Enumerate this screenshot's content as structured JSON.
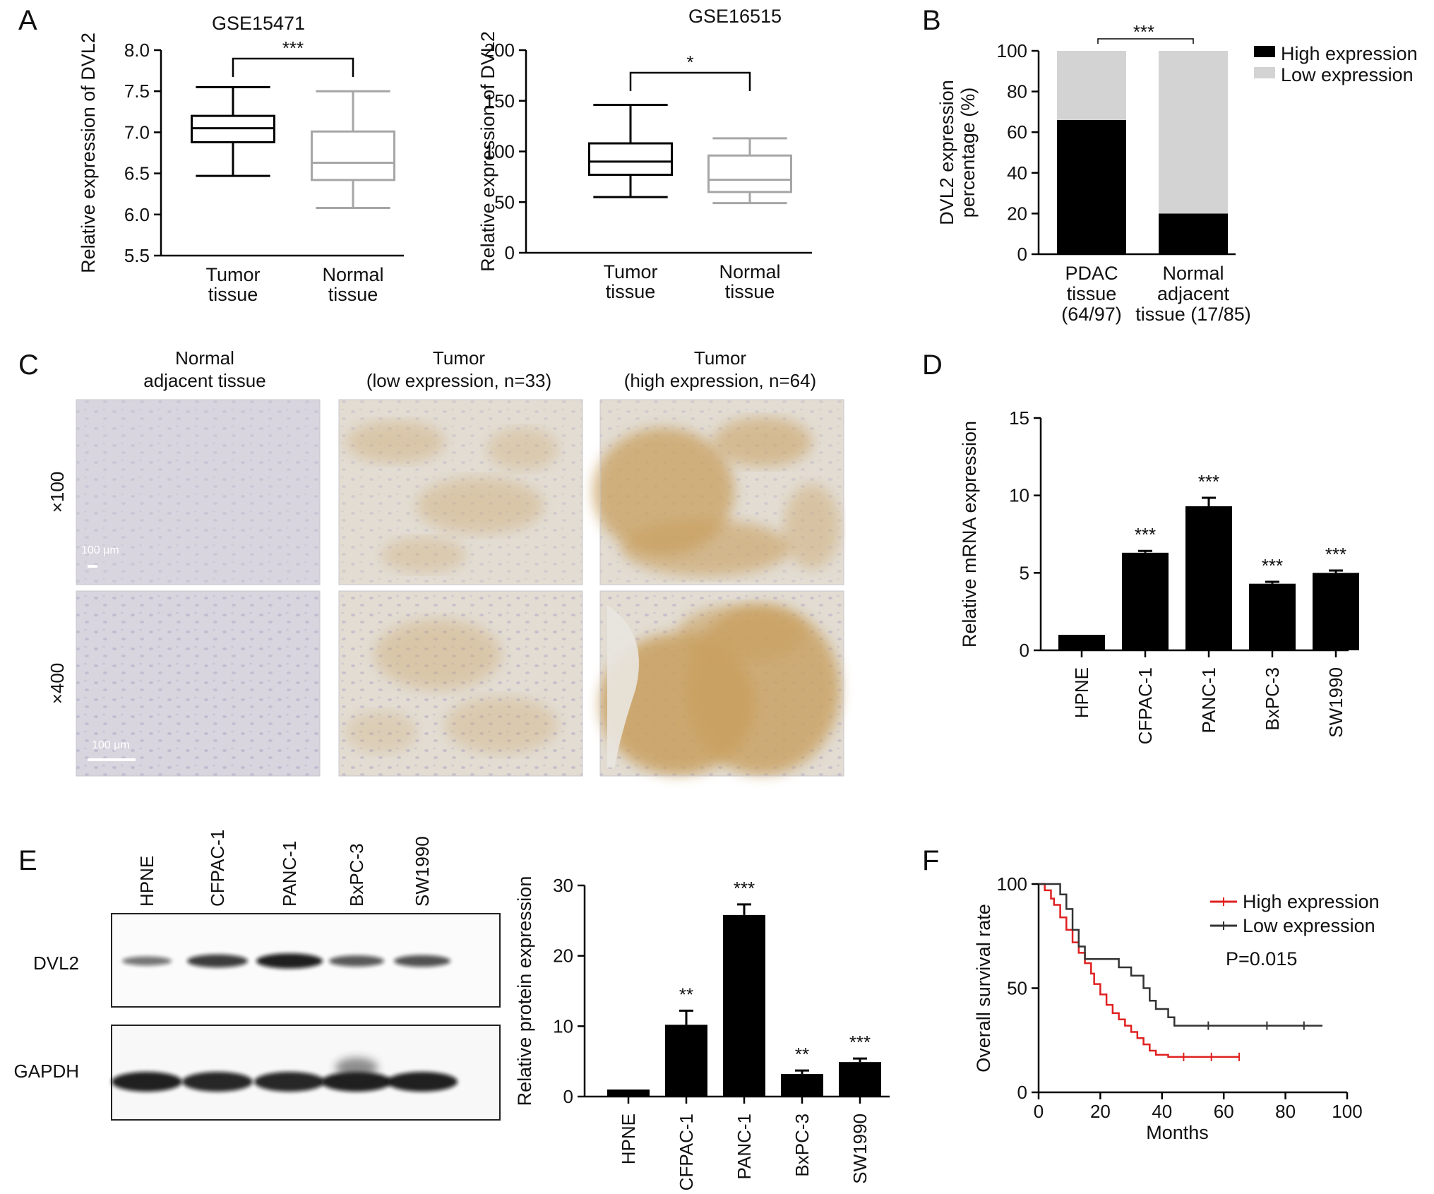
{
  "panels": {
    "A": "A",
    "B": "B",
    "C": "C",
    "D": "D",
    "E": "E",
    "F": "F"
  },
  "colors": {
    "black": "#000000",
    "high_expression": "#000000",
    "low_expression": "#d3d3d3",
    "normal_box": "#a6a6a6",
    "survival_high": "#e02020",
    "survival_low": "#333333",
    "stain_brown": "#c9a060",
    "tissue_bg": "#d9d6df"
  },
  "chart_data": [
    {
      "id": "A1",
      "type": "box",
      "title": "GSE15471",
      "ylabel": "Relative expression of DVL2",
      "ylim": [
        5.5,
        8.0
      ],
      "yticks": [
        "8.0",
        "7.5",
        "7.0",
        "6.5",
        "6.0",
        "5.5"
      ],
      "categories": [
        "Tumor\ntissue",
        "Normal\ntissue"
      ],
      "boxes": [
        {
          "min": 6.47,
          "q1": 6.88,
          "median": 7.05,
          "q3": 7.2,
          "max": 7.55,
          "color": "#000000"
        },
        {
          "min": 6.08,
          "q1": 6.42,
          "median": 6.63,
          "q3": 7.01,
          "max": 7.5,
          "color": "#a6a6a6"
        }
      ],
      "significance": "***"
    },
    {
      "id": "A2",
      "type": "box",
      "title": "GSE16515",
      "ylabel": "Relative expression of DVL2",
      "ylim": [
        0,
        200
      ],
      "yticks": [
        "200",
        "150",
        "100",
        "50",
        "0"
      ],
      "categories": [
        "Tumor\ntissue",
        "Normal\ntissue"
      ],
      "boxes": [
        {
          "min": 55,
          "q1": 77,
          "median": 90,
          "q3": 108,
          "max": 146,
          "color": "#000000"
        },
        {
          "min": 49,
          "q1": 60,
          "median": 72,
          "q3": 96,
          "max": 113,
          "color": "#a6a6a6"
        }
      ],
      "significance": "*"
    },
    {
      "id": "B",
      "type": "stacked-bar",
      "ylabel": "DVL2 expression\npercentage (%)",
      "ylim": [
        0,
        100
      ],
      "yticks": [
        "100",
        "80",
        "60",
        "40",
        "20",
        "0"
      ],
      "categories": [
        "PDAC\ntissue\n(64/97)",
        "Normal\nadjacent\ntissue (17/85)"
      ],
      "series": [
        {
          "name": "High expression",
          "values": [
            66,
            20
          ],
          "color": "#000000"
        },
        {
          "name": "Low expression",
          "values": [
            34,
            80
          ],
          "color": "#d3d3d3"
        }
      ],
      "legend": "top-right",
      "significance": "***"
    },
    {
      "id": "D",
      "type": "bar",
      "ylabel": "Relative mRNA expression",
      "ylim": [
        0,
        15
      ],
      "yticks": [
        "15",
        "10",
        "5",
        "0"
      ],
      "categories": [
        "HPNE",
        "CFPAC-1",
        "PANC-1",
        "BxPC-3",
        "SW1990"
      ],
      "values": [
        1.0,
        6.3,
        9.3,
        4.3,
        5.0
      ],
      "errors": [
        0,
        0.12,
        0.55,
        0.12,
        0.15
      ],
      "significance": [
        "",
        "***",
        "***",
        "***",
        "***"
      ]
    },
    {
      "id": "E",
      "type": "bar",
      "ylabel": "Relative protein expression",
      "ylim": [
        0,
        30
      ],
      "yticks": [
        "30",
        "20",
        "10",
        "0"
      ],
      "categories": [
        "HPNE",
        "CFPAC-1",
        "PANC-1",
        "BxPC-3",
        "SW1990"
      ],
      "values": [
        1.0,
        10.2,
        25.8,
        3.2,
        4.9
      ],
      "errors": [
        0,
        2.0,
        1.5,
        0.5,
        0.5
      ],
      "significance": [
        "",
        "**",
        "***",
        "**",
        "***"
      ]
    },
    {
      "id": "F",
      "type": "line",
      "xlabel": "Months",
      "ylabel": "Overall survival rate",
      "xlim": [
        0,
        100
      ],
      "ylim": [
        0,
        100
      ],
      "xticks": [
        "0",
        "20",
        "40",
        "60",
        "80",
        "100"
      ],
      "yticks": [
        "100",
        "50",
        "0"
      ],
      "series": [
        {
          "name": "High expression",
          "color": "#e02020",
          "points": [
            [
              0,
              100
            ],
            [
              2,
              97
            ],
            [
              4,
              93
            ],
            [
              5,
              90
            ],
            [
              7,
              84
            ],
            [
              9,
              78
            ],
            [
              11,
              72
            ],
            [
              13,
              67
            ],
            [
              15,
              62
            ],
            [
              17,
              57
            ],
            [
              18,
              52
            ],
            [
              20,
              47
            ],
            [
              22,
              42
            ],
            [
              24,
              38
            ],
            [
              26,
              35
            ],
            [
              28,
              32
            ],
            [
              30,
              29
            ],
            [
              32,
              26
            ],
            [
              34,
              23
            ],
            [
              36,
              20
            ],
            [
              38,
              18
            ],
            [
              42,
              17
            ],
            [
              65,
              17
            ]
          ]
        },
        {
          "name": "Low expression",
          "color": "#333333",
          "points": [
            [
              0,
              100
            ],
            [
              5,
              100
            ],
            [
              7,
              95
            ],
            [
              9,
              88
            ],
            [
              11,
              78
            ],
            [
              13,
              70
            ],
            [
              15,
              64
            ],
            [
              25,
              64
            ],
            [
              26,
              60
            ],
            [
              30,
              56
            ],
            [
              34,
              50
            ],
            [
              36,
              44
            ],
            [
              38,
              40
            ],
            [
              42,
              36
            ],
            [
              44,
              32
            ],
            [
              92,
              32
            ]
          ]
        }
      ],
      "annotation": "P=0.015",
      "legend": "top-right"
    }
  ],
  "ihc": {
    "columns": [
      "Normal\nadjacent tissue",
      "Tumor\n(low expression, n=33)",
      "Tumor\n(high expression, n=64)"
    ],
    "rows": [
      "×100",
      "×400"
    ],
    "scalebar_labels": [
      "100 μm",
      "100 μm"
    ]
  },
  "western": {
    "lanes": [
      "HPNE",
      "CFPAC-1",
      "PANC-1",
      "BxPC-3",
      "SW1990"
    ],
    "rows": [
      "DVL2",
      "GAPDH"
    ],
    "dvl2_intensity": [
      0.35,
      0.75,
      0.95,
      0.55,
      0.6
    ],
    "gapdh_intensity": [
      0.95,
      0.9,
      0.9,
      0.95,
      0.95
    ]
  }
}
